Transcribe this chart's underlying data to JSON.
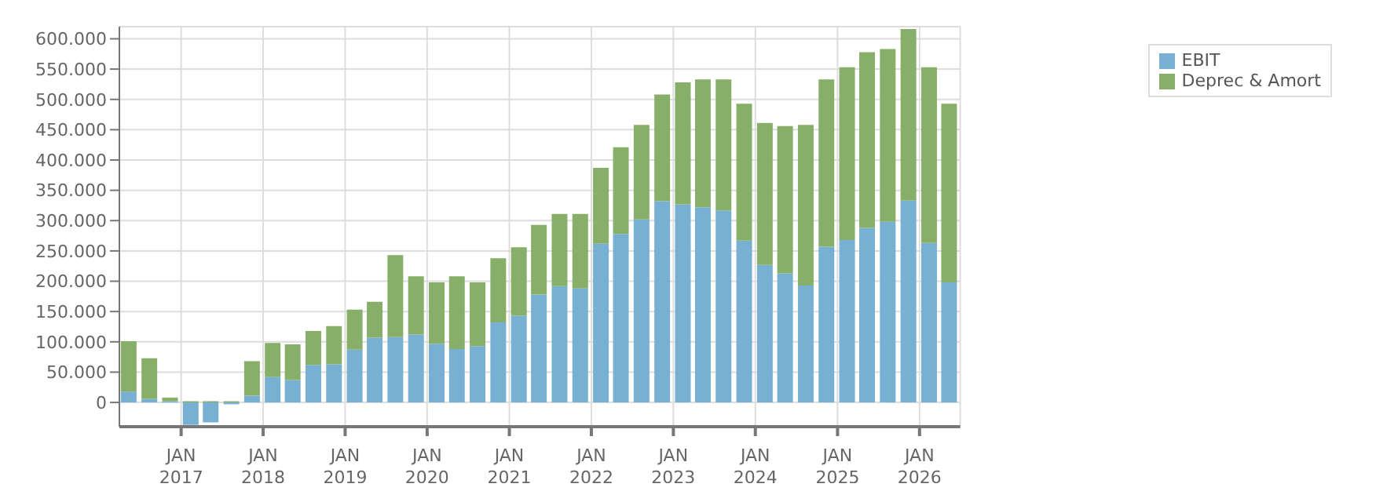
{
  "chart_data": {
    "type": "bar",
    "stacked": true,
    "x": [
      "2016-05-15",
      "2016-08-15",
      "2016-11-15",
      "2017-02-15",
      "2017-05-15",
      "2017-08-15",
      "2017-11-15",
      "2018-02-15",
      "2018-05-15",
      "2018-08-15",
      "2018-11-15",
      "2019-02-15",
      "2019-05-15",
      "2019-08-15",
      "2019-11-15",
      "2020-02-15",
      "2020-05-15",
      "2020-08-15",
      "2020-11-15",
      "2021-02-15",
      "2021-05-15",
      "2021-08-15",
      "2021-11-15",
      "2022-02-15",
      "2022-05-15",
      "2022-08-15",
      "2022-11-15",
      "2023-02-15",
      "2023-05-15",
      "2023-08-15",
      "2023-11-15",
      "2024-02-15",
      "2024-05-15",
      "2024-08-15",
      "2024-11-15",
      "2025-02-15",
      "2025-05-15",
      "2025-08-15",
      "2025-11-15",
      "2026-02-15",
      "2026-05-15"
    ],
    "series": [
      {
        "name": "EBIT",
        "color": "#77b0d2",
        "values": [
          18000,
          6000,
          2000,
          -37000,
          -33000,
          -3000,
          11000,
          42000,
          37000,
          62000,
          63000,
          87000,
          107000,
          108000,
          112000,
          97000,
          88000,
          93000,
          132000,
          143000,
          178000,
          192000,
          188000,
          262000,
          278000,
          302000,
          332000,
          327000,
          322000,
          317000,
          267000,
          227000,
          213000,
          193000,
          257000,
          268000,
          288000,
          298000,
          333000,
          263000,
          198000
        ]
      },
      {
        "name": "Deprec & Amort",
        "color": "#87af6a",
        "values": [
          83000,
          67000,
          6000,
          2000,
          2000,
          2000,
          57000,
          56000,
          59000,
          56000,
          63000,
          66000,
          59000,
          135000,
          96000,
          101000,
          120000,
          105000,
          106000,
          113000,
          115000,
          119000,
          123000,
          125000,
          143000,
          156000,
          176000,
          201000,
          211000,
          216000,
          226000,
          234000,
          243000,
          265000,
          276000,
          285000,
          290000,
          285000,
          283000,
          290000,
          295000
        ]
      }
    ],
    "xlim": [
      "2016-04-01",
      "2026-07-01"
    ],
    "xticks": [
      {
        "value": "2017-01-01",
        "label": "JAN 2017"
      },
      {
        "value": "2018-01-01",
        "label": "JAN 2018"
      },
      {
        "value": "2019-01-01",
        "label": "JAN 2019"
      },
      {
        "value": "2020-01-01",
        "label": "JAN 2020"
      },
      {
        "value": "2021-01-01",
        "label": "JAN 2021"
      },
      {
        "value": "2022-01-01",
        "label": "JAN 2022"
      },
      {
        "value": "2023-01-01",
        "label": "JAN 2023"
      },
      {
        "value": "2024-01-01",
        "label": "JAN 2024"
      },
      {
        "value": "2025-01-01",
        "label": "JAN 2025"
      },
      {
        "value": "2026-01-01",
        "label": "JAN 2026"
      }
    ],
    "ylim": [
      -40000,
      620000
    ],
    "yticks": [
      0,
      {
        "value": 50000,
        "label": "50.000"
      },
      {
        "value": 100000,
        "label": "100.000"
      },
      {
        "value": 150000,
        "label": "150.000"
      },
      {
        "value": 200000,
        "label": "200.000"
      },
      {
        "value": 250000,
        "label": "250.000"
      },
      {
        "value": 300000,
        "label": "300.000"
      },
      {
        "value": 350000,
        "label": "350.000"
      },
      {
        "value": 400000,
        "label": "400.000"
      },
      {
        "value": 450000,
        "label": "450.000"
      },
      {
        "value": 500000,
        "label": "500.000"
      },
      {
        "value": 550000,
        "label": "550.000"
      },
      {
        "value": 600000,
        "label": "600.000"
      }
    ],
    "grid": true,
    "legend": "top right"
  }
}
